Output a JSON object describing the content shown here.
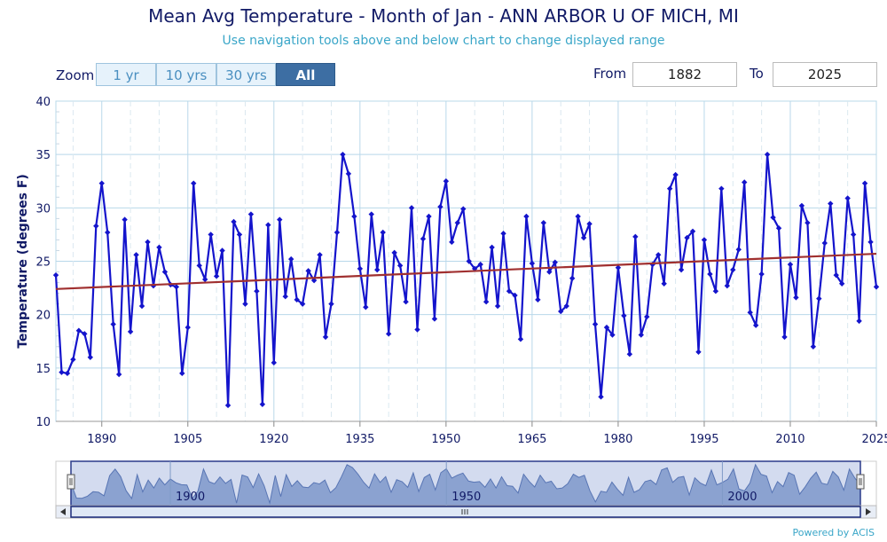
{
  "header": {
    "title": "Mean Avg Temperature - Month of Jan - ANN ARBOR U OF MICH, MI",
    "subtitle": "Use navigation tools above and below chart to change displayed range"
  },
  "zoom": {
    "label": "Zoom",
    "buttons": [
      "1 yr",
      "10 yrs",
      "30 yrs",
      "All"
    ],
    "active": "All"
  },
  "range": {
    "from_label": "From",
    "from_value": "1882",
    "to_label": "To",
    "to_value": "2025"
  },
  "credit": "Powered by ACIS",
  "colors": {
    "series": "#1414cc",
    "trend": "#a03030",
    "grid": "#b8d8ea",
    "axis_text": "#111a66",
    "navigator_fill": "#9fb3d6",
    "navigator_line": "#5b77b0"
  },
  "chart_data": {
    "type": "line",
    "title": "Mean Avg Temperature - Month of Jan - ANN ARBOR U OF MICH, MI",
    "ylabel": "Temperature (degrees F)",
    "xlabel": "",
    "xlim": [
      1882,
      2025
    ],
    "ylim": [
      10,
      40
    ],
    "x_ticks": [
      1890,
      1905,
      1920,
      1935,
      1950,
      1965,
      1980,
      1995,
      2010,
      2025
    ],
    "y_ticks": [
      10,
      15,
      20,
      25,
      30,
      35,
      40
    ],
    "navigator_ticks": [
      1900,
      1950,
      2000
    ],
    "grid": true,
    "series": [
      {
        "x": [
          1882,
          1883,
          1884,
          1885,
          1886,
          1887,
          1888,
          1889,
          1890,
          1891,
          1892,
          1893,
          1894,
          1895,
          1896,
          1897,
          1898,
          1899,
          1900,
          1901,
          1902,
          1903,
          1904,
          1905,
          1906,
          1907,
          1908,
          1909,
          1910,
          1911,
          1912,
          1913,
          1914,
          1915,
          1916,
          1917,
          1918,
          1919,
          1920,
          1921,
          1922,
          1923,
          1924,
          1925,
          1926,
          1927,
          1928,
          1929,
          1930,
          1931,
          1932,
          1933,
          1934,
          1935,
          1936,
          1937,
          1938,
          1939,
          1940,
          1941,
          1942,
          1943,
          1944,
          1945,
          1946,
          1947,
          1948,
          1949,
          1950,
          1951,
          1952,
          1953,
          1954,
          1955,
          1956,
          1957,
          1958,
          1959,
          1960,
          1961,
          1962,
          1963,
          1964,
          1965,
          1966,
          1967,
          1968,
          1969,
          1970,
          1971,
          1972,
          1973,
          1974,
          1975,
          1976,
          1977,
          1978,
          1979,
          1980,
          1981,
          1982,
          1983,
          1984,
          1985,
          1986,
          1987,
          1988,
          1989,
          1990,
          1991,
          1992,
          1993,
          1994,
          1995,
          1996,
          1997,
          1998,
          1999,
          2000,
          2001,
          2002,
          2003,
          2004,
          2005,
          2006,
          2007,
          2008,
          2009,
          2010,
          2011,
          2012,
          2013,
          2014,
          2015,
          2016,
          2017,
          2018,
          2019,
          2020,
          2021,
          2022,
          2023,
          2024,
          2025
        ],
        "values": [
          23.7,
          14.6,
          14.5,
          15.8,
          18.5,
          18.2,
          16.0,
          28.3,
          32.3,
          27.7,
          19.1,
          14.4,
          28.9,
          18.4,
          25.6,
          20.8,
          26.8,
          22.7,
          26.3,
          24.0,
          22.8,
          22.6,
          14.5,
          18.8,
          32.3,
          24.6,
          23.3,
          27.5,
          23.6,
          26.0,
          11.5,
          28.7,
          27.5,
          21.0,
          29.4,
          22.2,
          11.6,
          28.4,
          15.5,
          28.9,
          21.7,
          25.2,
          21.4,
          21.0,
          24.1,
          23.2,
          25.6,
          17.9,
          21.0,
          27.7,
          35.0,
          33.2,
          29.2,
          24.3,
          20.7,
          29.4,
          24.2,
          27.7,
          18.2,
          25.8,
          24.6,
          21.2,
          30.0,
          18.6,
          27.1,
          29.2,
          19.6,
          30.1,
          32.5,
          26.8,
          28.6,
          29.9,
          25.0,
          24.3,
          24.7,
          21.2,
          26.3,
          20.8,
          27.6,
          22.2,
          21.8,
          17.7,
          29.2,
          24.8,
          21.4,
          28.6,
          24.0,
          24.9,
          20.3,
          20.8,
          23.4,
          29.2,
          27.2,
          28.5,
          19.1,
          12.3,
          18.8,
          18.1,
          24.4,
          19.9,
          16.3,
          27.3,
          18.1,
          19.8,
          24.7,
          25.6,
          22.9,
          31.8,
          33.1,
          24.2,
          27.2,
          27.8,
          16.5,
          27.0,
          23.8,
          22.2,
          31.8,
          22.7,
          24.2,
          26.1,
          32.4,
          20.2,
          19.0,
          23.8,
          35.0,
          29.1,
          28.1,
          17.9,
          24.7,
          21.6,
          30.2,
          28.6,
          17.0,
          21.5,
          26.7,
          30.4,
          23.7,
          22.9,
          30.9,
          27.5,
          19.4,
          32.3,
          26.8,
          22.6
        ]
      },
      {
        "x": [
          1882,
          2025
        ],
        "values": [
          22.4,
          25.7
        ]
      }
    ]
  }
}
